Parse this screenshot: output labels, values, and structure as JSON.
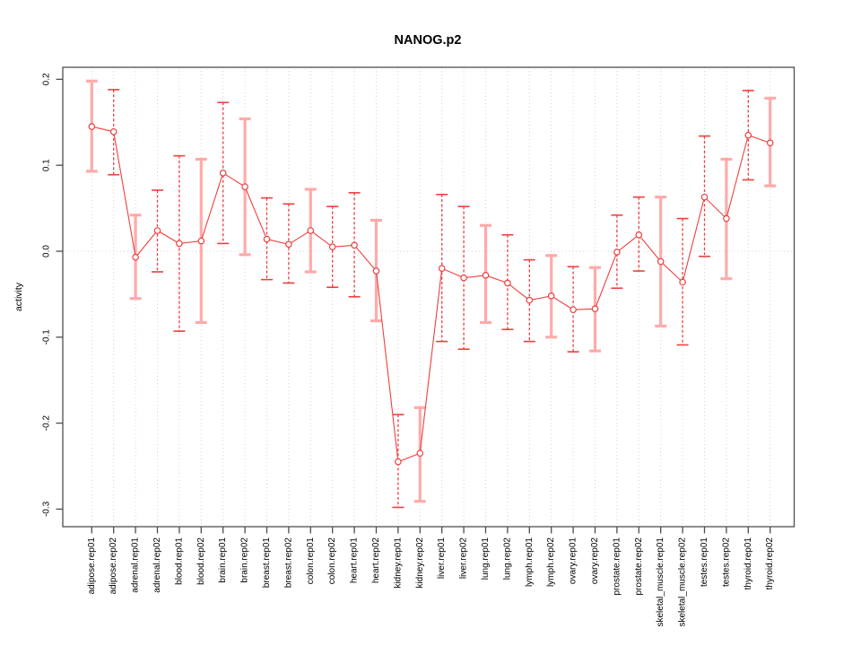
{
  "chart_data": {
    "type": "line",
    "title": "NANOG.p2",
    "xlabel": "",
    "ylabel": "activity",
    "ylim": [
      -0.32,
      0.21
    ],
    "yticks": [
      0.2,
      0.1,
      0.0,
      -0.1,
      -0.2,
      -0.3
    ],
    "grid": "vertical dotted gridline at every category; dotted horizontal line at y=0 only",
    "legend": "none",
    "marker": "open-circle",
    "categories": [
      "adipose.rep01",
      "adipose.rep02",
      "adrenal.rep01",
      "adrenal.rep02",
      "blood.rep01",
      "blood.rep02",
      "brain.rep01",
      "brain.rep02",
      "breast.rep01",
      "breast.rep02",
      "colon.rep01",
      "colon.rep02",
      "heart.rep01",
      "heart.rep02",
      "kidney.rep01",
      "kidney.rep02",
      "liver.rep01",
      "liver.rep02",
      "lung.rep01",
      "lung.rep02",
      "lymph.rep01",
      "lymph.rep02",
      "ovary.rep01",
      "ovary.rep02",
      "prostate.rep01",
      "prostate.rep02",
      "skeletal_muscle.rep01",
      "skeletal_muscle.rep02",
      "testes.rep01",
      "testes.rep02",
      "thyroid.rep01",
      "thyroid.rep02"
    ],
    "series": [
      {
        "name": "activity",
        "values": [
          0.145,
          0.139,
          -0.007,
          0.024,
          0.009,
          0.012,
          0.091,
          0.075,
          0.014,
          0.008,
          0.024,
          0.005,
          0.007,
          -0.023,
          -0.245,
          -0.235,
          -0.02,
          -0.031,
          -0.028,
          -0.037,
          -0.057,
          -0.052,
          -0.068,
          -0.067,
          -0.001,
          0.019,
          -0.012,
          -0.036,
          0.063,
          0.038,
          0.135,
          0.126
        ],
        "err_low": [
          0.093,
          0.089,
          -0.055,
          -0.024,
          -0.093,
          -0.083,
          0.009,
          -0.004,
          -0.033,
          -0.037,
          -0.024,
          -0.042,
          -0.053,
          -0.081,
          -0.298,
          -0.291,
          -0.105,
          -0.114,
          -0.083,
          -0.091,
          -0.105,
          -0.1,
          -0.117,
          -0.116,
          -0.043,
          -0.023,
          -0.087,
          -0.109,
          -0.006,
          -0.032,
          0.083,
          0.076
        ],
        "err_high": [
          0.198,
          0.188,
          0.042,
          0.071,
          0.111,
          0.107,
          0.173,
          0.154,
          0.062,
          0.055,
          0.072,
          0.052,
          0.068,
          0.036,
          -0.19,
          -0.182,
          0.066,
          0.052,
          0.03,
          0.019,
          -0.01,
          -0.005,
          -0.018,
          -0.019,
          0.042,
          0.063,
          0.063,
          0.038,
          0.134,
          0.107,
          0.187,
          0.178
        ],
        "bar_styles": [
          "solid",
          "dashed",
          "solid",
          "dashed",
          "dashed",
          "solid",
          "dashed",
          "solid",
          "dashed",
          "dashed",
          "solid",
          "dashed",
          "dashed",
          "solid",
          "dashed",
          "solid",
          "dashed",
          "dashed",
          "solid",
          "dashed",
          "dashed",
          "solid",
          "dashed",
          "solid",
          "dashed",
          "dashed",
          "solid",
          "dashed",
          "dashed",
          "solid",
          "dashed",
          "solid"
        ]
      }
    ],
    "colors": {
      "point": "#ee3f3f",
      "line": "#ee3f3f",
      "bar_dashed": "#ee3f3f",
      "bar_solid": "#ffaaaa",
      "grid": "#d4d4d4",
      "axis": "#4d4d4d",
      "text": "#000000"
    }
  }
}
